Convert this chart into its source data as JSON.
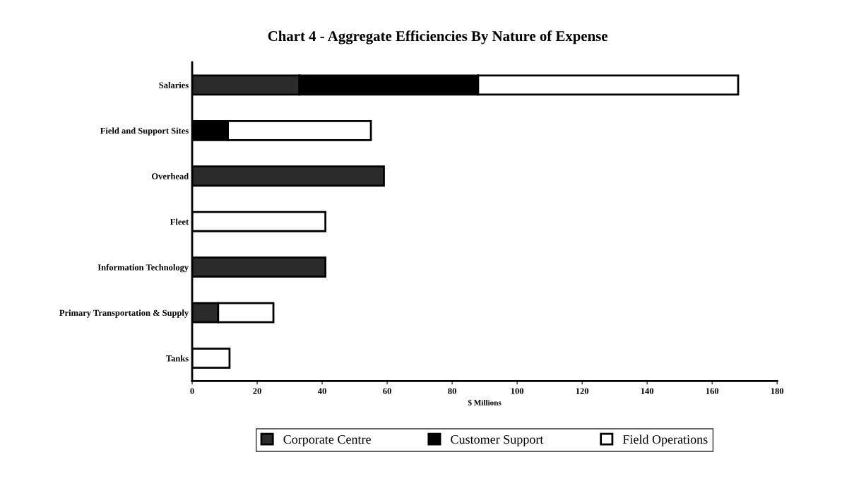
{
  "chart_data": {
    "type": "bar",
    "orientation": "horizontal",
    "stacked": true,
    "title": "Chart 4 - Aggregate Efficiencies By Nature of Expense",
    "xlabel": "$ Millions",
    "categories": [
      "Salaries",
      "Field and Support Sites",
      "Overhead",
      "Fleet",
      "Information Technology",
      "Primary Transportation & Supply",
      "Tanks"
    ],
    "series": [
      {
        "name": "Corporate Centre",
        "color": "#2b2b2b",
        "values": [
          33,
          null,
          59,
          null,
          41,
          8,
          null
        ]
      },
      {
        "name": "Customer Support",
        "color": "#000000",
        "values": [
          55,
          11,
          null,
          null,
          null,
          null,
          null
        ]
      },
      {
        "name": "Field Operations",
        "color": "#ffffff",
        "values": [
          80,
          44,
          null,
          41,
          null,
          17,
          11.5
        ]
      }
    ],
    "xlim": [
      0,
      180
    ],
    "xticks": [
      0,
      20,
      40,
      60,
      80,
      100,
      120,
      140,
      160,
      180
    ],
    "grid": false,
    "legend": "bottom"
  }
}
